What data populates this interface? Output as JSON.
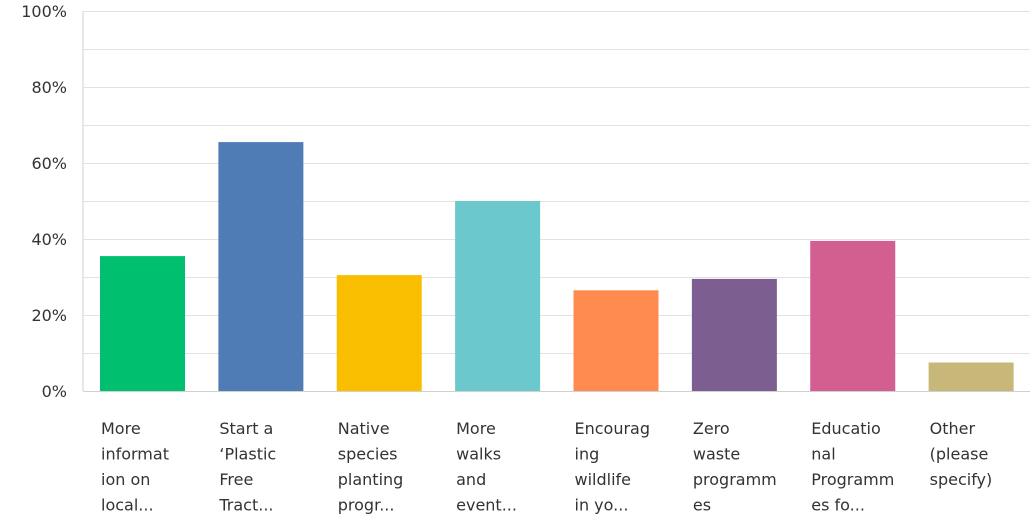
{
  "chart_data": {
    "type": "bar",
    "categories": [
      [
        "More",
        "informat",
        "ion on",
        "local..."
      ],
      [
        "Start a",
        "‘Plastic",
        "Free",
        "Tract..."
      ],
      [
        "Native",
        "species",
        "planting",
        "progr..."
      ],
      [
        "More",
        "walks",
        "and",
        "event..."
      ],
      [
        "Encourag",
        "ing",
        "wildlife",
        "in yo..."
      ],
      [
        "Zero",
        "waste",
        "programm",
        "es"
      ],
      [
        "Educatio",
        "nal",
        "Programm",
        "es fo..."
      ],
      [
        "Other",
        "(please",
        "specify)"
      ]
    ],
    "values": [
      35.5,
      65.5,
      30.5,
      50.0,
      26.5,
      29.5,
      39.5,
      7.5
    ],
    "value_unit": "%",
    "colors": [
      "#00bf6f",
      "#507cb6",
      "#f9be00",
      "#6bc8cd",
      "#ff8b4f",
      "#7d5e90",
      "#d25f90",
      "#c7b879"
    ],
    "ylim": [
      0,
      100
    ],
    "yticks": [
      "0%",
      "20%",
      "40%",
      "60%",
      "80%",
      "100%"
    ],
    "ytick_values": [
      0,
      20,
      40,
      60,
      80,
      100
    ],
    "gridlines": [
      10,
      20,
      30,
      40,
      50,
      60,
      70,
      80,
      90,
      100
    ],
    "grid": true,
    "title": "",
    "xlabel": "",
    "ylabel": ""
  }
}
